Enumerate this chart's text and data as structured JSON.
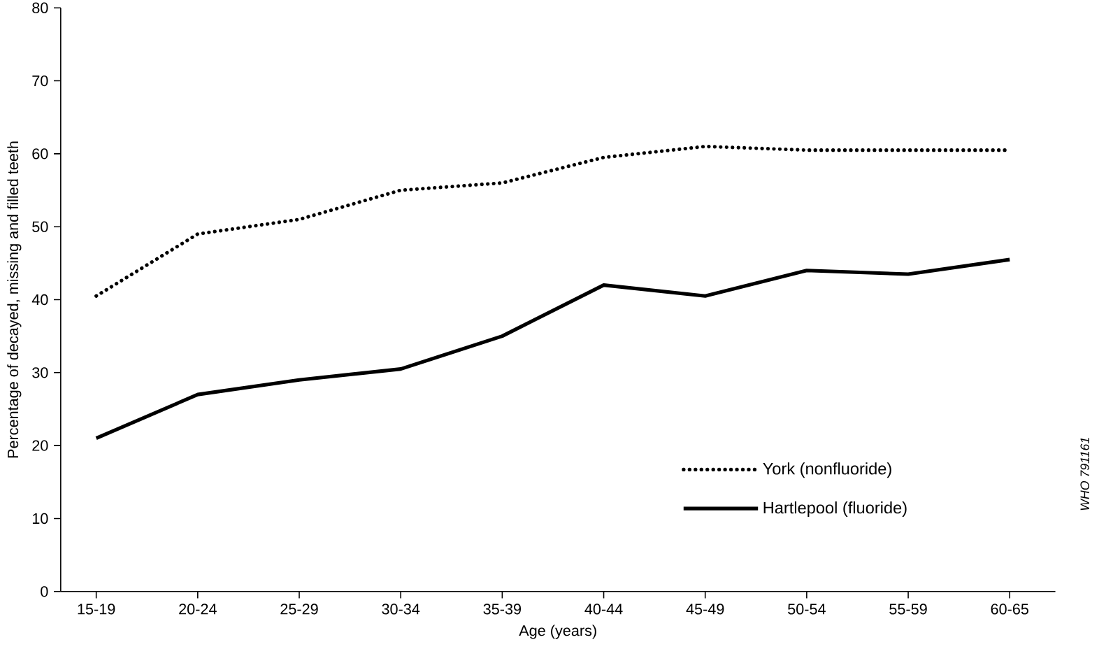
{
  "chart_data": {
    "type": "line",
    "xlabel": "Age (years)",
    "ylabel": "Percentage of decayed, missing and filled teeth",
    "categories": [
      "15-19",
      "20-24",
      "25-29",
      "30-34",
      "35-39",
      "40-44",
      "45-49",
      "50-54",
      "55-59",
      "60-65"
    ],
    "series": [
      {
        "name": "York (nonfluoride)",
        "color": "#000000",
        "line_style": "dotted",
        "values": [
          40.5,
          49,
          51,
          55,
          56,
          59.5,
          61,
          60.5,
          60.5,
          60.5
        ]
      },
      {
        "name": "Hartlepool (fluoride)",
        "color": "#000000",
        "line_style": "solid",
        "values": [
          21,
          27,
          29,
          30.5,
          35,
          42,
          40.5,
          44,
          43.5,
          45.5
        ]
      }
    ],
    "ylim": [
      0,
      80
    ],
    "yticks": [
      0,
      10,
      20,
      30,
      40,
      50,
      60,
      70,
      80
    ],
    "grid": false,
    "legend": "bottom right",
    "marker": "none",
    "annotations": [
      "WHO 791161"
    ]
  }
}
